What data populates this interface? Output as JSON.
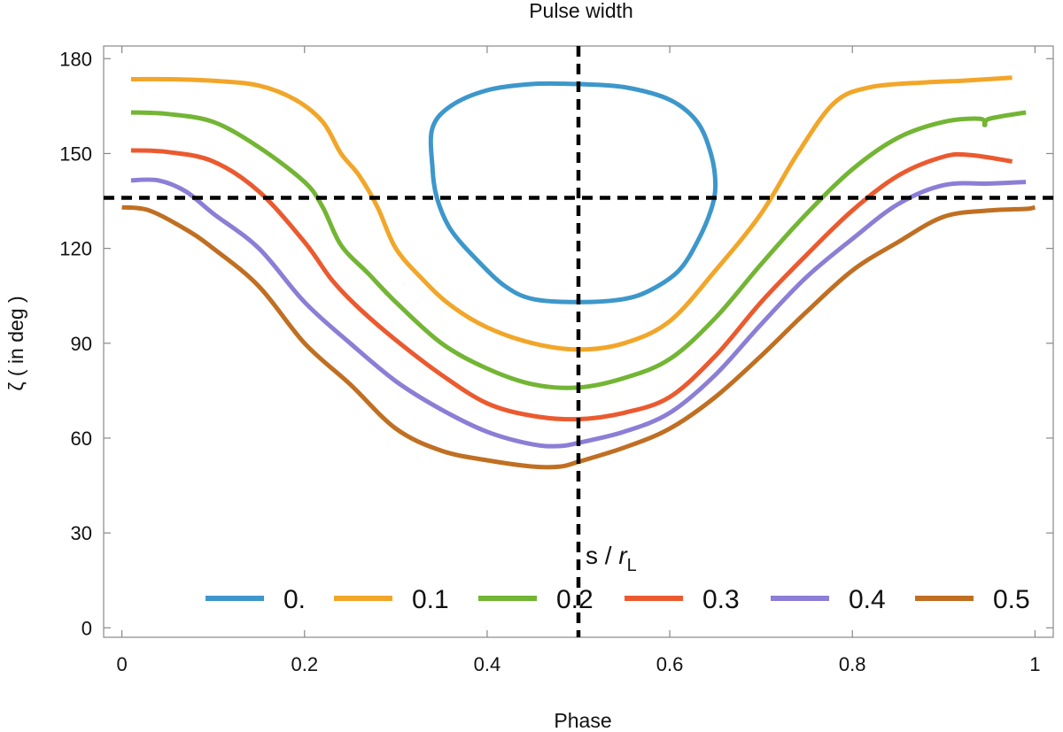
{
  "chart_data": {
    "type": "line",
    "title": "Pulse width",
    "xlabel": "Phase",
    "ylabel": "ζ ( in deg )",
    "xlim": [
      -0.02,
      1.02
    ],
    "ylim": [
      -3,
      184
    ],
    "xticks": [
      0,
      0.2,
      0.4,
      0.6,
      0.8,
      1
    ],
    "xtick_labels": [
      "0",
      "0.2",
      "0.4",
      "0.6",
      "0.8",
      "1"
    ],
    "yticks": [
      0,
      30,
      60,
      90,
      120,
      150,
      180
    ],
    "ytick_labels": [
      "0",
      "30",
      "60",
      "90",
      "120",
      "150",
      "180"
    ],
    "grid": false,
    "legend_position": "bottom",
    "reference_lines": [
      {
        "orientation": "vertical",
        "value": 0.5,
        "style": "dashed",
        "color": "#000000"
      },
      {
        "orientation": "horizontal",
        "value": 136,
        "style": "dashed",
        "color": "#000000"
      }
    ],
    "annotation": {
      "text": "s / ",
      "text_italic": "r",
      "subscript": "L",
      "x": 0.5,
      "y": 23
    },
    "series": [
      {
        "name": "0.",
        "color": "#3d97cb",
        "closed": true,
        "points": [
          [
            0.5,
            172
          ],
          [
            0.55,
            171
          ],
          [
            0.6,
            167
          ],
          [
            0.63,
            160
          ],
          [
            0.645,
            150
          ],
          [
            0.65,
            140
          ],
          [
            0.645,
            132
          ],
          [
            0.63,
            122
          ],
          [
            0.61,
            113
          ],
          [
            0.58,
            107
          ],
          [
            0.55,
            104
          ],
          [
            0.5,
            103
          ],
          [
            0.45,
            104
          ],
          [
            0.42,
            108
          ],
          [
            0.39,
            116
          ],
          [
            0.36,
            126
          ],
          [
            0.345,
            136
          ],
          [
            0.34,
            146
          ],
          [
            0.34,
            158
          ],
          [
            0.36,
            165
          ],
          [
            0.4,
            170
          ],
          [
            0.45,
            172
          ],
          [
            0.5,
            172
          ]
        ]
      },
      {
        "name": "0.1",
        "color": "#f2a629",
        "points": [
          [
            0.01,
            173.5
          ],
          [
            0.05,
            173.5
          ],
          [
            0.1,
            173
          ],
          [
            0.15,
            171.5
          ],
          [
            0.19,
            167
          ],
          [
            0.22,
            160
          ],
          [
            0.24,
            150
          ],
          [
            0.26,
            143
          ],
          [
            0.28,
            133
          ],
          [
            0.3,
            120
          ],
          [
            0.33,
            110
          ],
          [
            0.36,
            102
          ],
          [
            0.4,
            95
          ],
          [
            0.45,
            90
          ],
          [
            0.5,
            88
          ],
          [
            0.55,
            90
          ],
          [
            0.6,
            97
          ],
          [
            0.65,
            113
          ],
          [
            0.7,
            131
          ],
          [
            0.74,
            150
          ],
          [
            0.78,
            166
          ],
          [
            0.82,
            171
          ],
          [
            0.88,
            172.5
          ],
          [
            0.92,
            173
          ],
          [
            0.975,
            174
          ]
        ]
      },
      {
        "name": "0.2",
        "color": "#73b534",
        "points": [
          [
            0.01,
            163
          ],
          [
            0.05,
            162.5
          ],
          [
            0.1,
            160
          ],
          [
            0.15,
            152
          ],
          [
            0.2,
            141
          ],
          [
            0.22,
            133
          ],
          [
            0.24,
            121
          ],
          [
            0.27,
            112
          ],
          [
            0.3,
            103
          ],
          [
            0.35,
            90
          ],
          [
            0.4,
            82
          ],
          [
            0.45,
            77
          ],
          [
            0.5,
            76
          ],
          [
            0.55,
            79
          ],
          [
            0.6,
            85
          ],
          [
            0.65,
            98
          ],
          [
            0.7,
            115
          ],
          [
            0.75,
            131
          ],
          [
            0.8,
            145
          ],
          [
            0.85,
            155
          ],
          [
            0.9,
            160
          ],
          [
            0.94,
            161
          ],
          [
            0.945,
            159
          ],
          [
            0.95,
            161
          ],
          [
            0.99,
            163
          ]
        ]
      },
      {
        "name": "0.3",
        "color": "#eb5a2f",
        "points": [
          [
            0.01,
            151
          ],
          [
            0.05,
            150.5
          ],
          [
            0.1,
            147.5
          ],
          [
            0.15,
            138
          ],
          [
            0.2,
            122
          ],
          [
            0.23,
            110
          ],
          [
            0.26,
            101
          ],
          [
            0.3,
            91
          ],
          [
            0.35,
            80
          ],
          [
            0.4,
            71
          ],
          [
            0.45,
            67
          ],
          [
            0.5,
            66
          ],
          [
            0.55,
            68
          ],
          [
            0.6,
            73
          ],
          [
            0.65,
            86
          ],
          [
            0.7,
            103
          ],
          [
            0.75,
            118
          ],
          [
            0.8,
            132
          ],
          [
            0.85,
            143
          ],
          [
            0.9,
            149
          ],
          [
            0.93,
            149.5
          ],
          [
            0.975,
            147.5
          ]
        ]
      },
      {
        "name": "0.4",
        "color": "#8c7ed6",
        "points": [
          [
            0.01,
            141.5
          ],
          [
            0.04,
            141.5
          ],
          [
            0.07,
            138
          ],
          [
            0.1,
            131
          ],
          [
            0.15,
            120
          ],
          [
            0.2,
            103
          ],
          [
            0.25,
            90
          ],
          [
            0.3,
            78
          ],
          [
            0.35,
            69
          ],
          [
            0.4,
            62
          ],
          [
            0.45,
            58
          ],
          [
            0.48,
            57.5
          ],
          [
            0.5,
            58.5
          ],
          [
            0.55,
            62
          ],
          [
            0.6,
            68
          ],
          [
            0.65,
            80
          ],
          [
            0.7,
            96
          ],
          [
            0.75,
            111
          ],
          [
            0.8,
            123
          ],
          [
            0.85,
            134
          ],
          [
            0.9,
            140
          ],
          [
            0.95,
            140.5
          ],
          [
            0.99,
            141
          ]
        ]
      },
      {
        "name": "0.5",
        "color": "#c06f22",
        "points": [
          [
            0.0,
            133
          ],
          [
            0.03,
            132
          ],
          [
            0.07,
            126
          ],
          [
            0.1,
            120
          ],
          [
            0.15,
            108
          ],
          [
            0.2,
            90
          ],
          [
            0.25,
            77
          ],
          [
            0.3,
            63
          ],
          [
            0.35,
            56
          ],
          [
            0.4,
            53
          ],
          [
            0.45,
            51
          ],
          [
            0.48,
            51
          ],
          [
            0.5,
            52.5
          ],
          [
            0.55,
            57
          ],
          [
            0.6,
            63
          ],
          [
            0.65,
            73
          ],
          [
            0.7,
            86
          ],
          [
            0.75,
            100
          ],
          [
            0.8,
            113
          ],
          [
            0.85,
            122
          ],
          [
            0.9,
            130
          ],
          [
            0.95,
            132
          ],
          [
            0.99,
            132.5
          ],
          [
            1.0,
            133
          ]
        ]
      }
    ]
  }
}
